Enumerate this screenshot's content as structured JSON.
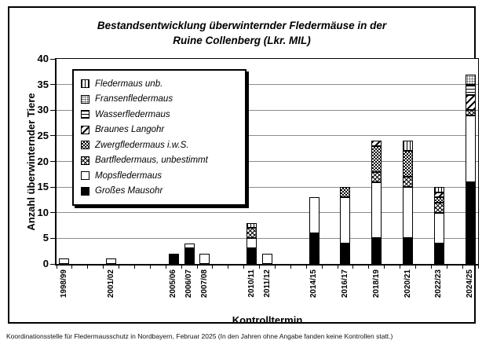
{
  "footer_note": "Koordinationsstelle für Fledermausschutz in Nordbayern, Februar 2025 (In den Jahren ohne Angabe fanden keine Kontrollen statt.)",
  "chart_data": {
    "type": "bar",
    "stacked": true,
    "title": "Bestandsentwicklung überwinternder Fledermäuse in der Ruine Collenberg (Lkr. MIL)",
    "title_lines": [
      "Bestandsentwicklung überwinternder Fledermäuse in der",
      "Ruine Collenberg (Lkr. MIL)"
    ],
    "xlabel": "Kontrolltermin",
    "ylabel": "Anzahl überwinternder Tiere",
    "ylim": [
      0,
      40
    ],
    "ytick_step": 5,
    "grid": true,
    "legend_position": "top-left-inside",
    "n_slots": 27,
    "categories": [
      "1998/99",
      "2001/02",
      "2005/06",
      "2006/07",
      "2007/08",
      "2010/11",
      "2011/12",
      "2014/15",
      "2016/17",
      "2018/19",
      "2020/21",
      "2022/23",
      "2024/25"
    ],
    "category_slot_index": [
      0,
      3,
      7,
      8,
      9,
      12,
      13,
      16,
      18,
      20,
      22,
      24,
      26
    ],
    "series": [
      {
        "name": "Großes Mausohr",
        "pattern": "solid-black",
        "values": [
          0,
          0,
          2,
          3,
          0,
          3,
          0,
          6,
          4,
          5,
          5,
          4,
          16
        ]
      },
      {
        "name": "Mopsfledermaus",
        "pattern": "solid-white",
        "values": [
          1,
          1,
          0,
          1,
          2,
          2,
          2,
          7,
          9,
          11,
          10,
          6,
          13
        ]
      },
      {
        "name": "Bartfledermaus, unbestimmt",
        "pattern": "diagonal-crosshatch",
        "values": [
          0,
          0,
          0,
          0,
          0,
          2,
          0,
          0,
          0,
          2,
          2,
          2,
          1
        ]
      },
      {
        "name": "Zwergfledermaus i.w.S.",
        "pattern": "checkerboard",
        "values": [
          0,
          0,
          0,
          0,
          0,
          0,
          0,
          0,
          2,
          5,
          5,
          1,
          0
        ]
      },
      {
        "name": "Braunes Langohr",
        "pattern": "diagonal-stripes",
        "values": [
          0,
          0,
          0,
          0,
          0,
          0,
          0,
          0,
          0,
          1,
          0,
          1,
          3
        ]
      },
      {
        "name": "Wasserfledermaus",
        "pattern": "horizontal-lines",
        "values": [
          0,
          0,
          0,
          0,
          0,
          0,
          0,
          0,
          0,
          0,
          0,
          0,
          2
        ]
      },
      {
        "name": "Fransenfledermaus",
        "pattern": "dot-grid",
        "values": [
          0,
          0,
          0,
          0,
          0,
          0,
          0,
          0,
          0,
          0,
          0,
          0,
          2
        ]
      },
      {
        "name": "Fledermaus unb.",
        "pattern": "vertical-lines",
        "values": [
          0,
          0,
          0,
          0,
          0,
          1,
          0,
          0,
          0,
          0,
          2,
          1,
          0
        ]
      }
    ],
    "totals": [
      1,
      1,
      2,
      4,
      2,
      8,
      2,
      13,
      15,
      24,
      24,
      15,
      37
    ],
    "legend_order_top_to_bottom": [
      "Fledermaus unb.",
      "Fransenfledermaus",
      "Wasserfledermaus",
      "Braunes Langohr",
      "Zwergfledermaus i.w.S.",
      "Bartfledermaus, unbestimmt",
      "Mopsfledermaus",
      "Großes Mausohr"
    ]
  }
}
